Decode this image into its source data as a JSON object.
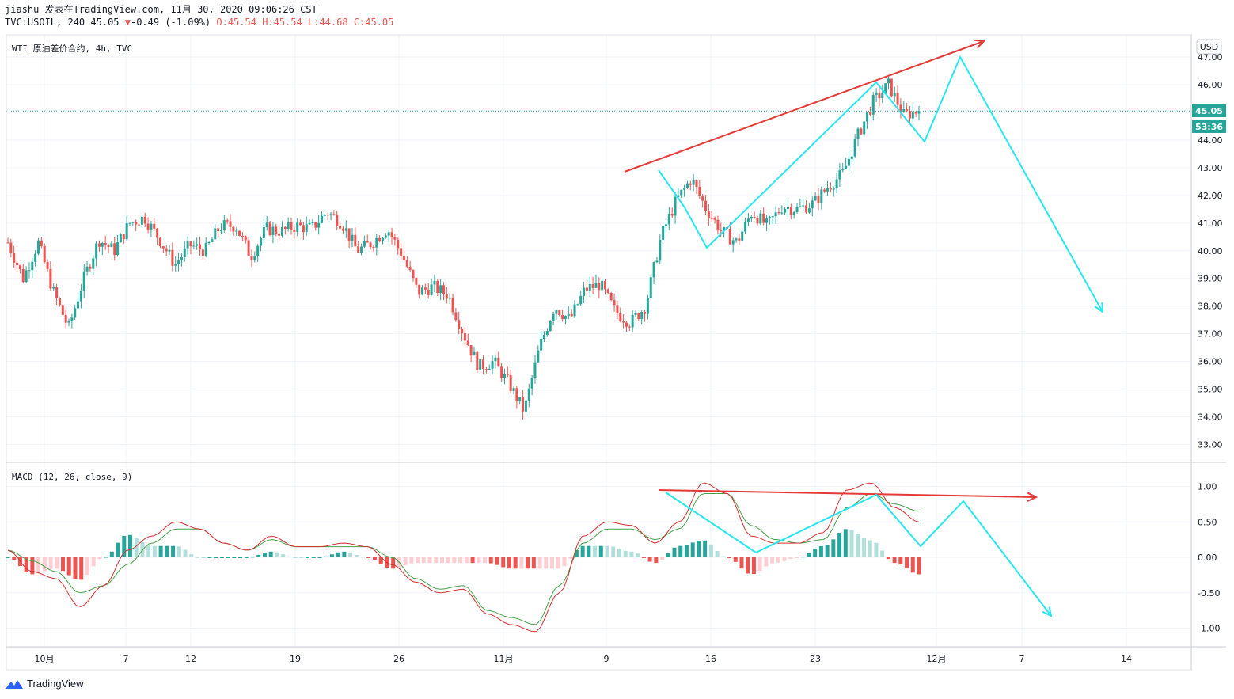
{
  "header": {
    "line1": "jiashu 发表在TradingView.com, 11月 30, 2020 09:06:26 CST",
    "symbol": "TVC:USOIL, 240",
    "last": "45.05",
    "change": "-0.49 (-1.09%)",
    "o": "O:45.54",
    "h": "H:45.54",
    "l": "L:44.68",
    "c": "C:45.05"
  },
  "main_pane": {
    "title": "WTI 原油差价合约, 4h, TVC",
    "currency_label": "USD",
    "price_badge": "45.05",
    "countdown_badge": "53:36"
  },
  "macd_pane": {
    "title": "MACD (12, 26, close, 9)"
  },
  "logo": {
    "text": "TradingView"
  },
  "colors": {
    "up": "#26a69a",
    "down": "#ef5350",
    "macd_line": "#d32f2f",
    "signal_line": "#43a047",
    "annotation_red": "#e53935",
    "annotation_cyan": "#26e6f0"
  },
  "chart_data": [
    {
      "type": "candlestick",
      "title": "WTI 原油差价合约, 4h, TVC",
      "x_labels": [
        "10月",
        "7",
        "12",
        "19",
        "26",
        "11月",
        "9",
        "16",
        "23",
        "12月",
        "7",
        "14"
      ],
      "y_ticks": [
        "47.00",
        "46.00",
        "45.00",
        "44.00",
        "43.00",
        "42.00",
        "41.00",
        "40.00",
        "39.00",
        "38.00",
        "37.00",
        "36.00",
        "35.00",
        "34.00",
        "33.00"
      ],
      "ylim": [
        32.6,
        47.7
      ],
      "last_price": 45.05,
      "close_path_approx": [
        {
          "x": "Sep 30",
          "y": 40.3
        },
        {
          "x": "Oct 1",
          "y": 39.0
        },
        {
          "x": "Oct 2",
          "y": 40.3
        },
        {
          "x": "Oct 4",
          "y": 38.5
        },
        {
          "x": "Oct 5",
          "y": 37.2
        },
        {
          "x": "Oct 6",
          "y": 39.0
        },
        {
          "x": "Oct 7",
          "y": 40.4
        },
        {
          "x": "Oct 8",
          "y": 40.0
        },
        {
          "x": "Oct 9",
          "y": 41.0
        },
        {
          "x": "Oct 10",
          "y": 41.2
        },
        {
          "x": "Oct 11",
          "y": 40.4
        },
        {
          "x": "Oct 12",
          "y": 39.5
        },
        {
          "x": "Oct 13",
          "y": 40.2
        },
        {
          "x": "Oct 14",
          "y": 40.0
        },
        {
          "x": "Oct 15",
          "y": 40.9
        },
        {
          "x": "Oct 16",
          "y": 40.9
        },
        {
          "x": "Oct 17",
          "y": 39.8
        },
        {
          "x": "Oct 18",
          "y": 40.8
        },
        {
          "x": "Oct 19",
          "y": 40.7
        },
        {
          "x": "Oct 20",
          "y": 40.9
        },
        {
          "x": "Oct 21",
          "y": 40.8
        },
        {
          "x": "Oct 22",
          "y": 41.4
        },
        {
          "x": "Oct 23",
          "y": 41.0
        },
        {
          "x": "Oct 24",
          "y": 40.0
        },
        {
          "x": "Oct 25",
          "y": 40.3
        },
        {
          "x": "Oct 26",
          "y": 40.8
        },
        {
          "x": "Oct 27",
          "y": 39.8
        },
        {
          "x": "Oct 28",
          "y": 38.5
        },
        {
          "x": "Oct 29",
          "y": 38.7
        },
        {
          "x": "Oct 30",
          "y": 38.4
        },
        {
          "x": "Oct 31",
          "y": 37.0
        },
        {
          "x": "Nov 1",
          "y": 35.8
        },
        {
          "x": "Nov 2",
          "y": 36.0
        },
        {
          "x": "Nov 3",
          "y": 35.2
        },
        {
          "x": "Nov 4",
          "y": 34.2
        },
        {
          "x": "Nov 5",
          "y": 36.5
        },
        {
          "x": "Nov 6",
          "y": 38.0
        },
        {
          "x": "Nov 7",
          "y": 37.5
        },
        {
          "x": "Nov 8",
          "y": 38.6
        },
        {
          "x": "Nov 9",
          "y": 38.8
        },
        {
          "x": "Nov 10",
          "y": 37.8
        },
        {
          "x": "Nov 11",
          "y": 37.4
        },
        {
          "x": "Nov 12",
          "y": 38.0
        },
        {
          "x": "Nov 13",
          "y": 40.5
        },
        {
          "x": "Nov 14",
          "y": 41.8
        },
        {
          "x": "Nov 15",
          "y": 42.6
        },
        {
          "x": "Nov 16",
          "y": 41.5
        },
        {
          "x": "Nov 17",
          "y": 40.7
        },
        {
          "x": "Nov 18",
          "y": 40.3
        },
        {
          "x": "Nov 19",
          "y": 41.4
        },
        {
          "x": "Nov 20",
          "y": 40.9
        },
        {
          "x": "Nov 21",
          "y": 41.6
        },
        {
          "x": "Nov 22",
          "y": 41.5
        },
        {
          "x": "Nov 23",
          "y": 41.7
        },
        {
          "x": "Nov 24",
          "y": 42.3
        },
        {
          "x": "Nov 25",
          "y": 42.8
        },
        {
          "x": "Nov 26",
          "y": 44.2
        },
        {
          "x": "Nov 27",
          "y": 45.4
        },
        {
          "x": "Nov 28",
          "y": 46.0
        },
        {
          "x": "Nov 29",
          "y": 44.9
        },
        {
          "x": "Nov 30",
          "y": 45.05
        }
      ]
    },
    {
      "type": "line+bar",
      "title": "MACD (12, 26, close, 9)",
      "y_ticks": [
        "1.00",
        "0.50",
        "0.00",
        "-0.50",
        "-1.00"
      ],
      "ylim": [
        -1.25,
        1.1
      ],
      "series": [
        {
          "name": "MACD",
          "values": [
            0.1,
            -0.2,
            -0.3,
            -0.7,
            -0.4,
            0.1,
            0.3,
            0.5,
            0.4,
            0.2,
            0.1,
            0.3,
            0.15,
            0.15,
            0.2,
            0.15,
            -0.1,
            -0.35,
            -0.5,
            -0.45,
            -0.8,
            -0.95,
            -1.05,
            -0.5,
            0.3,
            0.5,
            0.45,
            0.2,
            0.5,
            1.05,
            0.9,
            0.3,
            0.2,
            0.2,
            0.35,
            0.95,
            1.05,
            0.7,
            0.5
          ]
        },
        {
          "name": "Signal",
          "values": [
            0.1,
            -0.05,
            -0.2,
            -0.5,
            -0.4,
            -0.1,
            0.2,
            0.4,
            0.4,
            0.2,
            0.1,
            0.25,
            0.15,
            0.15,
            0.15,
            0.15,
            0.0,
            -0.3,
            -0.45,
            -0.4,
            -0.75,
            -0.85,
            -0.95,
            -0.4,
            0.2,
            0.4,
            0.4,
            0.25,
            0.4,
            0.9,
            0.9,
            0.45,
            0.25,
            0.2,
            0.25,
            0.7,
            0.9,
            0.75,
            0.65
          ]
        }
      ]
    }
  ]
}
